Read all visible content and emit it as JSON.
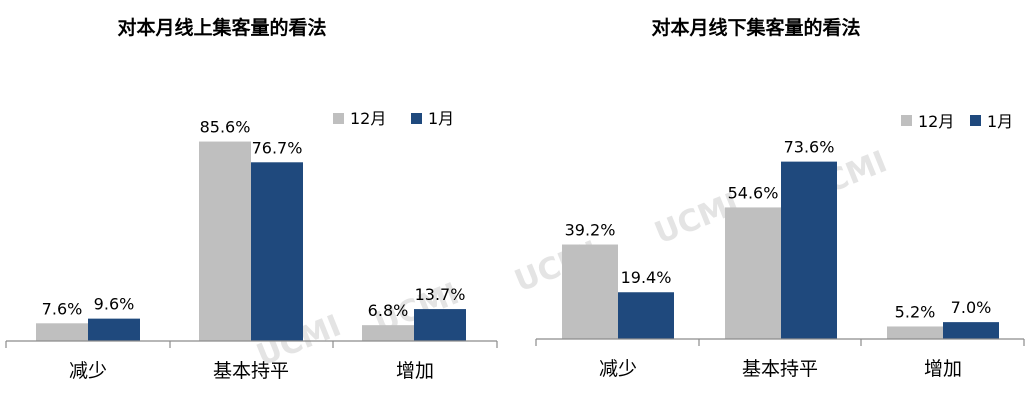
{
  "colors": {
    "dec": "#bfbfbf",
    "jan": "#1f497d"
  },
  "watermark": "UCMI",
  "chart_data": [
    {
      "type": "bar",
      "title": "对本月线上集客量的看法",
      "categories": [
        "减少",
        "基本持平",
        "增加"
      ],
      "series": [
        {
          "name": "12月",
          "values": [
            7.6,
            85.6,
            6.8
          ],
          "labels": [
            "7.6%",
            "85.6%",
            "6.8%"
          ]
        },
        {
          "name": "1月",
          "values": [
            9.6,
            76.7,
            13.7
          ],
          "labels": [
            "9.6%",
            "76.7%",
            "13.7%"
          ]
        }
      ],
      "ylim": [
        0,
        100
      ],
      "legend": "top-right",
      "grid": false
    },
    {
      "type": "bar",
      "title": "对本月线下集客量的看法",
      "categories": [
        "减少",
        "基本持平",
        "增加"
      ],
      "series": [
        {
          "name": "12月",
          "values": [
            39.2,
            54.6,
            5.2
          ],
          "labels": [
            "39.2%",
            "54.6%",
            "5.2%"
          ]
        },
        {
          "name": "1月",
          "values": [
            19.4,
            73.6,
            7.0
          ],
          "labels": [
            "19.4%",
            "73.6%",
            "7.0%"
          ]
        }
      ],
      "ylim": [
        0,
        100
      ],
      "legend": "top-right",
      "grid": false
    }
  ]
}
